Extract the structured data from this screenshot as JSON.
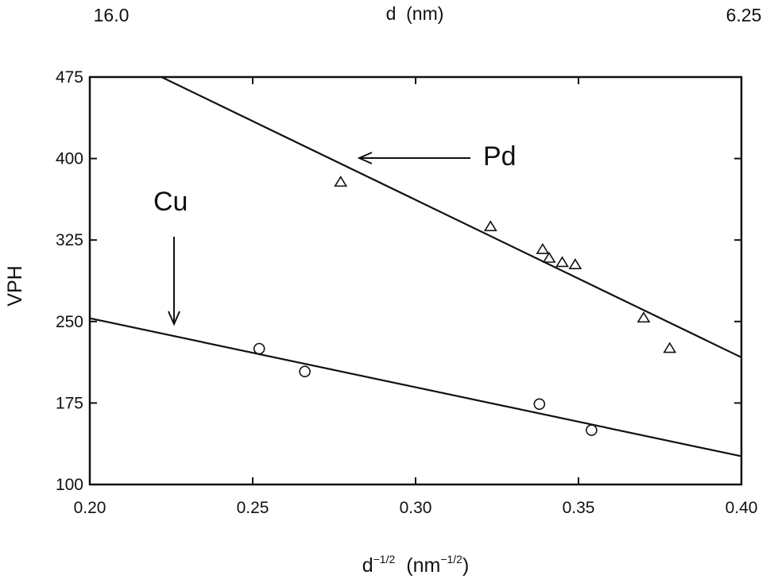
{
  "chart_data": {
    "type": "scatter",
    "xlabel": "d",
    "xlabel_sup": "−1/2",
    "xlabel_unit_open": "(nm",
    "xlabel_unit_sup": "−1/2",
    "xlabel_unit_close": ")",
    "ylabel": "VPH",
    "xlim": [
      0.2,
      0.4
    ],
    "ylim": [
      100,
      475
    ],
    "x_ticks": [
      0.2,
      0.25,
      0.3,
      0.35,
      0.4
    ],
    "x_tick_labels": [
      "0.20",
      "0.25",
      "0.30",
      "0.35",
      "0.40"
    ],
    "y_ticks": [
      100,
      175,
      250,
      325,
      400,
      475
    ],
    "y_tick_labels": [
      "100",
      "175",
      "250",
      "325",
      "400",
      "475"
    ],
    "top_axis": {
      "title": "d  (nm)",
      "left_label": "16.0",
      "right_label": "6.25"
    },
    "series": [
      {
        "name": "Pd",
        "marker": "triangle",
        "x": [
          0.277,
          0.323,
          0.339,
          0.341,
          0.345,
          0.349,
          0.37,
          0.378
        ],
        "y": [
          378,
          337,
          316,
          308,
          304,
          302,
          253,
          225
        ],
        "fit": {
          "x": [
            0.222,
            0.4
          ],
          "y": [
            475,
            217
          ]
        }
      },
      {
        "name": "Cu",
        "marker": "circle",
        "x": [
          0.252,
          0.266,
          0.338,
          0.354
        ],
        "y": [
          225,
          204,
          174,
          150
        ],
        "fit": {
          "x": [
            0.2,
            0.4
          ],
          "y": [
            253,
            126
          ]
        }
      }
    ],
    "annotations": [
      {
        "text": "Pd",
        "target_x": 0.282,
        "target_y": 399
      },
      {
        "text": "Cu",
        "target_x": 0.226,
        "target_y": 250
      }
    ]
  }
}
